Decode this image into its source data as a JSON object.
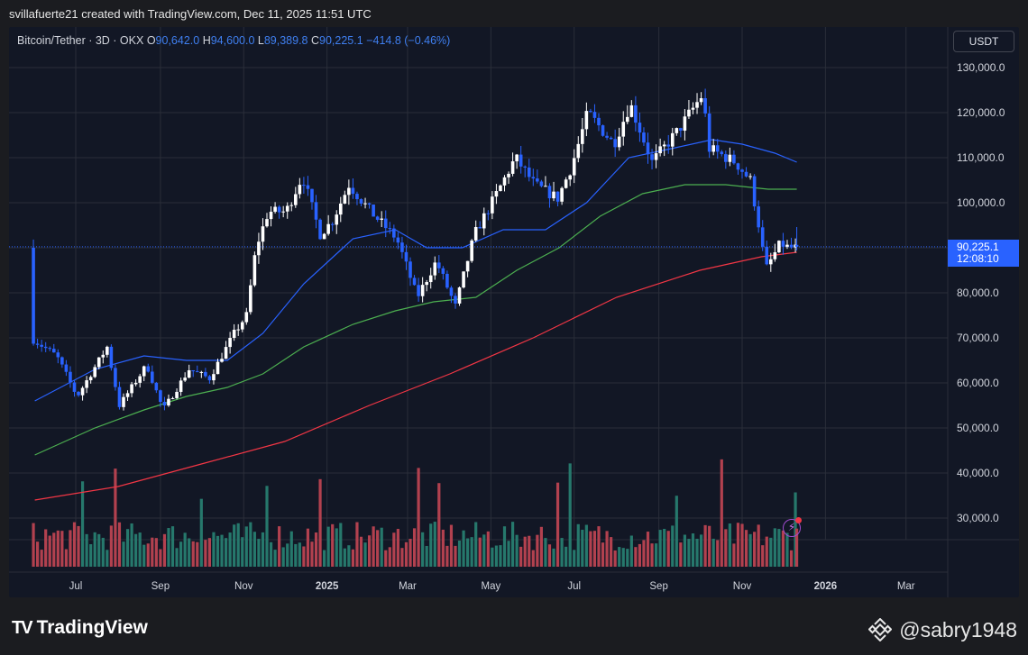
{
  "header": {
    "caption": "svillafuerte21 created with TradingView.com, Dec 11, 2025 11:51 UTC"
  },
  "legend": {
    "symbol": "Bitcoin/Tether · 3D · OKX",
    "open_label": "O",
    "open": "90,642.0",
    "high_label": "H",
    "high": "94,600.0",
    "low_label": "L",
    "low": "89,389.8",
    "close_label": "C",
    "close": "90,225.1",
    "change": "−414.8 (−0.46%)"
  },
  "currency_button": "USDT",
  "last_price": {
    "price": "90,225.1",
    "countdown": "12:08:10"
  },
  "brand": {
    "logo": "TV",
    "name": "TradingView"
  },
  "watermark": {
    "handle": "@sabry1948"
  },
  "colors": {
    "up": "#ffffff",
    "down": "#2962ff",
    "vol_up": "#26786c",
    "vol_down": "#b2414f",
    "ma_short": "#2962ff",
    "ma_mid": "#4caf50",
    "ma_long": "#f23645",
    "grid": "#2a2e39",
    "axis_text": "#d1d4dc"
  },
  "chart_data": {
    "type": "candlestick",
    "symbol": "Bitcoin/Tether",
    "interval": "3D",
    "exchange": "OKX",
    "quote_currency": "USDT",
    "ylim": [
      25000,
      135000
    ],
    "y_ticks": [
      30000,
      40000,
      50000,
      60000,
      70000,
      80000,
      90000,
      100000,
      110000,
      120000,
      130000
    ],
    "y_tick_labels": [
      "30,000.0",
      "40,000.0",
      "50,000.0",
      "60,000.0",
      "70,000.0",
      "80,000.0",
      "90,000.0",
      "100,000.0",
      "110,000.0",
      "120,000.0",
      "130,000.0"
    ],
    "x_tick_labels": [
      "Jul",
      "Sep",
      "Nov",
      "2025",
      "Mar",
      "May",
      "Jul",
      "Sep",
      "Nov",
      "2026",
      "Mar"
    ],
    "x_tick_dates": [
      "2024-07-01",
      "2024-09-01",
      "2024-11-01",
      "2025-01-01",
      "2025-03-01",
      "2025-05-01",
      "2025-07-01",
      "2025-09-01",
      "2025-11-01",
      "2026-01-01",
      "2026-03-01"
    ],
    "x_tick_bold": [
      false,
      false,
      false,
      true,
      false,
      false,
      false,
      false,
      false,
      true,
      false
    ],
    "last_candle": {
      "open": 90642.0,
      "high": 94600.0,
      "low": 89389.8,
      "close": 90225.1
    },
    "last_price_line": 90225.1,
    "moving_averages": [
      {
        "color": "#2962ff",
        "points": [
          [
            "2024-06-01",
            56000
          ],
          [
            "2024-07-15",
            63000
          ],
          [
            "2024-08-20",
            66000
          ],
          [
            "2024-09-20",
            65000
          ],
          [
            "2024-10-20",
            65000
          ],
          [
            "2024-11-15",
            71000
          ],
          [
            "2024-12-15",
            82000
          ],
          [
            "2025-01-20",
            92000
          ],
          [
            "2025-02-20",
            94000
          ],
          [
            "2025-03-15",
            90000
          ],
          [
            "2025-04-10",
            90000
          ],
          [
            "2025-05-10",
            94000
          ],
          [
            "2025-06-10",
            94000
          ],
          [
            "2025-07-10",
            100000
          ],
          [
            "2025-08-10",
            110000
          ],
          [
            "2025-09-10",
            112000
          ],
          [
            "2025-10-10",
            114000
          ],
          [
            "2025-11-01",
            113000
          ],
          [
            "2025-11-25",
            111000
          ],
          [
            "2025-12-11",
            109000
          ]
        ]
      },
      {
        "color": "#4caf50",
        "points": [
          [
            "2024-06-01",
            44000
          ],
          [
            "2024-07-15",
            50000
          ],
          [
            "2024-08-20",
            54000
          ],
          [
            "2024-09-20",
            57000
          ],
          [
            "2024-10-20",
            59000
          ],
          [
            "2024-11-15",
            62000
          ],
          [
            "2024-12-15",
            68000
          ],
          [
            "2025-01-20",
            73000
          ],
          [
            "2025-02-20",
            76000
          ],
          [
            "2025-03-20",
            78000
          ],
          [
            "2025-04-20",
            79000
          ],
          [
            "2025-05-20",
            85000
          ],
          [
            "2025-06-20",
            90000
          ],
          [
            "2025-07-20",
            97000
          ],
          [
            "2025-08-20",
            102000
          ],
          [
            "2025-09-20",
            104000
          ],
          [
            "2025-10-20",
            104000
          ],
          [
            "2025-11-20",
            103000
          ],
          [
            "2025-12-11",
            103000
          ]
        ]
      },
      {
        "color": "#f23645",
        "points": [
          [
            "2024-06-01",
            34000
          ],
          [
            "2024-08-01",
            37000
          ],
          [
            "2024-10-01",
            42000
          ],
          [
            "2024-12-01",
            47000
          ],
          [
            "2025-02-01",
            55000
          ],
          [
            "2025-04-01",
            62000
          ],
          [
            "2025-06-01",
            70000
          ],
          [
            "2025-08-01",
            79000
          ],
          [
            "2025-10-01",
            85000
          ],
          [
            "2025-11-15",
            88000
          ],
          [
            "2025-12-11",
            89000
          ]
        ]
      }
    ]
  }
}
